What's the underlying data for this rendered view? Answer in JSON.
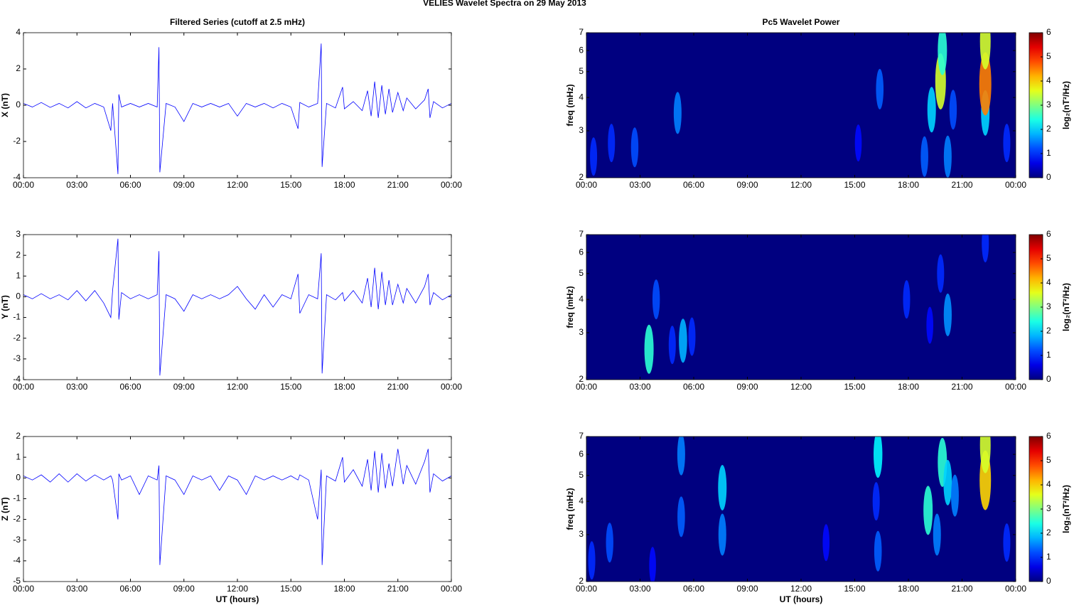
{
  "title": "VELIES Wavelet Spectra on 29 May      2013",
  "chart_data": [
    {
      "type": "line",
      "title": "Filtered Series (cutoff at 2.5 mHz)",
      "ylabel": "X (nT)",
      "x": [
        0,
        0.5,
        1,
        1.5,
        2,
        2.5,
        3,
        3.5,
        4,
        4.5,
        4.9,
        5,
        5.3,
        5.35,
        5.5,
        6,
        6.5,
        7,
        7.5,
        7.6,
        7.65,
        8,
        8.5,
        9,
        9.5,
        10,
        10.5,
        11,
        11.5,
        12,
        12.5,
        13,
        13.5,
        14,
        14.5,
        15,
        15.4,
        15.5,
        16,
        16.5,
        16.7,
        16.75,
        17,
        17.5,
        17.9,
        18,
        18.5,
        19,
        19.3,
        19.5,
        19.7,
        19.9,
        20.1,
        20.3,
        20.5,
        20.7,
        21,
        21.3,
        21.5,
        22,
        22.5,
        22.7,
        22.8,
        23,
        23.5,
        24
      ],
      "series": [
        {
          "color": "#0000ff",
          "values": [
            0.1,
            -0.1,
            0.15,
            -0.12,
            0.1,
            -0.15,
            0.2,
            -0.15,
            0.1,
            -0.1,
            -1.4,
            0.1,
            -3.8,
            0.6,
            -0.1,
            0.1,
            -0.1,
            0.1,
            -0.1,
            3.2,
            -3.7,
            0.1,
            -0.1,
            -0.9,
            0.1,
            -0.1,
            0.1,
            -0.1,
            0.1,
            -0.6,
            0.1,
            -0.1,
            0.1,
            -0.15,
            0.1,
            -0.1,
            -1.3,
            0.15,
            -0.1,
            0.1,
            3.4,
            -3.4,
            0.1,
            -0.15,
            1.0,
            -0.2,
            0.2,
            -0.3,
            0.8,
            -0.6,
            1.3,
            -0.7,
            1.1,
            -0.5,
            0.9,
            -0.4,
            0.7,
            -0.3,
            0.4,
            -0.2,
            0.3,
            0.9,
            -0.7,
            0.2,
            -0.15,
            0.1
          ]
        }
      ],
      "xlim": [
        0,
        24
      ],
      "ylim": [
        -4,
        4
      ],
      "yticks": [
        -4,
        -2,
        0,
        2,
        4
      ],
      "xticks": [
        {
          "value": 0,
          "label": "00:00"
        },
        {
          "value": 3,
          "label": "03:00"
        },
        {
          "value": 6,
          "label": "06:00"
        },
        {
          "value": 9,
          "label": "09:00"
        },
        {
          "value": 12,
          "label": "12:00"
        },
        {
          "value": 15,
          "label": "15:00"
        },
        {
          "value": 18,
          "label": "18:00"
        },
        {
          "value": 21,
          "label": "21:00"
        },
        {
          "value": 24,
          "label": "00:00"
        }
      ]
    },
    {
      "type": "line",
      "ylabel": "Y (nT)",
      "x": [
        0,
        0.5,
        1,
        1.5,
        2,
        2.5,
        3,
        3.5,
        4,
        4.5,
        4.9,
        5,
        5.3,
        5.35,
        5.5,
        6,
        6.5,
        7,
        7.5,
        7.6,
        7.65,
        8,
        8.5,
        9,
        9.5,
        10,
        10.5,
        11,
        11.5,
        12,
        12.5,
        13,
        13.5,
        14,
        14.5,
        15,
        15.4,
        15.5,
        16,
        16.5,
        16.7,
        16.75,
        17,
        17.5,
        17.9,
        18,
        18.5,
        19,
        19.3,
        19.5,
        19.7,
        19.9,
        20.1,
        20.3,
        20.5,
        20.7,
        21,
        21.3,
        21.5,
        22,
        22.5,
        22.7,
        22.8,
        23,
        23.5,
        24
      ],
      "series": [
        {
          "color": "#0000ff",
          "values": [
            0.1,
            -0.1,
            0.15,
            -0.1,
            0.1,
            -0.15,
            0.3,
            -0.2,
            0.3,
            -0.3,
            -1.0,
            0.3,
            2.8,
            -1.1,
            0.2,
            -0.1,
            0.1,
            -0.1,
            0.1,
            2.2,
            -3.8,
            0.1,
            -0.1,
            -0.7,
            0.1,
            -0.1,
            0.1,
            -0.1,
            0.1,
            0.5,
            -0.1,
            -0.6,
            0.1,
            -0.5,
            0.1,
            -0.1,
            1.1,
            -0.8,
            0.1,
            -0.1,
            2.1,
            -3.7,
            0.1,
            -0.15,
            0.2,
            -0.2,
            0.3,
            -0.3,
            0.9,
            -0.5,
            1.4,
            -0.6,
            1.2,
            -0.4,
            0.8,
            -0.4,
            0.6,
            -0.3,
            0.4,
            -0.3,
            0.5,
            1.1,
            -0.4,
            0.2,
            -0.15,
            0.1
          ]
        }
      ],
      "xlim": [
        0,
        24
      ],
      "ylim": [
        -4,
        3
      ],
      "yticks": [
        -4,
        -3,
        -2,
        -1,
        0,
        1,
        2,
        3
      ],
      "xticks": [
        {
          "value": 0,
          "label": "00:00"
        },
        {
          "value": 3,
          "label": "03:00"
        },
        {
          "value": 6,
          "label": "06:00"
        },
        {
          "value": 9,
          "label": "09:00"
        },
        {
          "value": 12,
          "label": "12:00"
        },
        {
          "value": 15,
          "label": "15:00"
        },
        {
          "value": 18,
          "label": "18:00"
        },
        {
          "value": 21,
          "label": "21:00"
        },
        {
          "value": 24,
          "label": "00:00"
        }
      ]
    },
    {
      "type": "line",
      "ylabel": "Z (nT)",
      "xlabel": "UT (hours)",
      "x": [
        0,
        0.5,
        1,
        1.5,
        2,
        2.5,
        3,
        3.5,
        4,
        4.5,
        4.9,
        5,
        5.3,
        5.35,
        5.5,
        6,
        6.5,
        7,
        7.5,
        7.6,
        7.65,
        8,
        8.5,
        9,
        9.5,
        10,
        10.5,
        11,
        11.5,
        12,
        12.5,
        13,
        13.5,
        14,
        14.5,
        15,
        15.4,
        15.5,
        16,
        16.5,
        16.7,
        16.75,
        17,
        17.5,
        17.9,
        18,
        18.5,
        19,
        19.3,
        19.5,
        19.7,
        19.9,
        20.1,
        20.3,
        20.5,
        20.7,
        21,
        21.3,
        21.5,
        22,
        22.5,
        22.7,
        22.8,
        23,
        23.5,
        24
      ],
      "series": [
        {
          "color": "#0000ff",
          "values": [
            0.1,
            -0.1,
            0.15,
            -0.2,
            0.2,
            -0.2,
            0.2,
            -0.15,
            0.15,
            -0.1,
            0.1,
            -0.1,
            -2.0,
            0.2,
            -0.1,
            0.1,
            -0.8,
            0.1,
            -0.1,
            0.6,
            -4.2,
            0.1,
            -0.1,
            -0.8,
            0.1,
            -0.1,
            0.1,
            -0.6,
            0.1,
            -0.1,
            -0.8,
            0.1,
            -0.1,
            0.1,
            -0.1,
            0.1,
            -0.1,
            0.15,
            -0.1,
            -2.0,
            0.4,
            -4.2,
            0.1,
            -0.15,
            1.0,
            -0.2,
            0.4,
            -0.4,
            0.9,
            -0.6,
            1.3,
            -0.7,
            1.2,
            -0.5,
            0.7,
            -0.4,
            1.4,
            -0.3,
            0.6,
            -0.3,
            0.8,
            1.4,
            -0.7,
            0.2,
            -0.15,
            0.1
          ]
        }
      ],
      "xlim": [
        0,
        24
      ],
      "ylim": [
        -5,
        2
      ],
      "yticks": [
        -5,
        -4,
        -3,
        -2,
        -1,
        0,
        1,
        2
      ],
      "xticks": [
        {
          "value": 0,
          "label": "00:00"
        },
        {
          "value": 3,
          "label": "03:00"
        },
        {
          "value": 6,
          "label": "06:00"
        },
        {
          "value": 9,
          "label": "09:00"
        },
        {
          "value": 12,
          "label": "12:00"
        },
        {
          "value": 15,
          "label": "15:00"
        },
        {
          "value": 18,
          "label": "18:00"
        },
        {
          "value": 21,
          "label": "21:00"
        },
        {
          "value": 24,
          "label": "00:00"
        }
      ]
    },
    {
      "type": "heatmap",
      "title": "Pc5 Wavelet Power",
      "ylabel": "freq (mHz)",
      "colorbar_label": "log₂(nT²/Hz)",
      "log_y": true,
      "x": [
        0.4,
        1.4,
        2.7,
        5.1,
        15.2,
        16.4,
        18.9,
        19.3,
        19.8,
        19.9,
        20.2,
        20.5,
        22.3,
        22.3,
        22.3,
        23.5
      ],
      "y": [
        2.4,
        2.7,
        2.6,
        3.5,
        2.7,
        4.3,
        2.4,
        3.6,
        4.6,
        6,
        2.4,
        3.6,
        3.5,
        4.5,
        6.5,
        2.7
      ],
      "values": [
        1,
        1,
        1.2,
        1.5,
        0.8,
        1.3,
        1.3,
        2,
        3.5,
        2.5,
        1.5,
        1.2,
        2,
        4.5,
        3.5,
        1
      ],
      "xlim": [
        0,
        24
      ],
      "ylim": [
        2,
        7
      ],
      "yticks": [
        2,
        3,
        4,
        5,
        6,
        7
      ],
      "clim": [
        0,
        6
      ],
      "cticks": [
        0,
        1,
        2,
        3,
        4,
        5,
        6
      ],
      "xticks": [
        {
          "value": 0,
          "label": "00:00"
        },
        {
          "value": 3,
          "label": "03:00"
        },
        {
          "value": 6,
          "label": "06:00"
        },
        {
          "value": 9,
          "label": "09:00"
        },
        {
          "value": 12,
          "label": "12:00"
        },
        {
          "value": 15,
          "label": "15:00"
        },
        {
          "value": 18,
          "label": "18:00"
        },
        {
          "value": 21,
          "label": "21:00"
        },
        {
          "value": 24,
          "label": "00:00"
        }
      ]
    },
    {
      "type": "heatmap",
      "ylabel": "freq (mHz)",
      "colorbar_label": "log₂(nT²/Hz)",
      "log_y": true,
      "x": [
        3.5,
        3.9,
        4.8,
        5.4,
        5.9,
        17.9,
        19.2,
        19.8,
        20.2,
        22.3
      ],
      "y": [
        2.6,
        4,
        2.7,
        2.8,
        2.9,
        4,
        3.2,
        5,
        3.5,
        6.5
      ],
      "values": [
        2.5,
        1.2,
        1,
        1.8,
        1,
        1,
        0.8,
        1,
        1.6,
        1
      ],
      "xlim": [
        0,
        24
      ],
      "ylim": [
        2,
        7
      ],
      "yticks": [
        2,
        3,
        4,
        5,
        6,
        7
      ],
      "clim": [
        0,
        6
      ],
      "cticks": [
        0,
        1,
        2,
        3,
        4,
        5,
        6
      ],
      "xticks": [
        {
          "value": 0,
          "label": "00:00"
        },
        {
          "value": 3,
          "label": "03:00"
        },
        {
          "value": 6,
          "label": "06:00"
        },
        {
          "value": 9,
          "label": "09:00"
        },
        {
          "value": 12,
          "label": "12:00"
        },
        {
          "value": 15,
          "label": "15:00"
        },
        {
          "value": 18,
          "label": "18:00"
        },
        {
          "value": 21,
          "label": "21:00"
        },
        {
          "value": 24,
          "label": "00:00"
        }
      ]
    },
    {
      "type": "heatmap",
      "ylabel": "freq (mHz)",
      "xlabel": "UT (hours)",
      "colorbar_label": "log₂(nT²/Hz)",
      "log_y": true,
      "x": [
        0.3,
        1.3,
        3.7,
        5.3,
        5.3,
        7.6,
        7.6,
        13.4,
        16.2,
        16.3,
        16.3,
        19.1,
        19.6,
        19.9,
        20.2,
        20.6,
        22.3,
        22.3,
        23.5
      ],
      "y": [
        2.4,
        2.8,
        2.3,
        6,
        3.5,
        4.5,
        3,
        2.8,
        4,
        6,
        2.6,
        3.7,
        3,
        5.6,
        4.7,
        4.2,
        4.8,
        6.5,
        2.8
      ],
      "values": [
        1,
        1.2,
        0.8,
        1.5,
        1.3,
        2,
        1.5,
        0.8,
        1,
        2.2,
        1.3,
        2.5,
        1.5,
        2.5,
        2,
        1.5,
        4,
        3.5,
        1
      ],
      "xlim": [
        0,
        24
      ],
      "ylim": [
        2,
        7
      ],
      "yticks": [
        2,
        3,
        4,
        5,
        6,
        7
      ],
      "clim": [
        0,
        6
      ],
      "cticks": [
        0,
        1,
        2,
        3,
        4,
        5,
        6
      ],
      "xticks": [
        {
          "value": 0,
          "label": "00:00"
        },
        {
          "value": 3,
          "label": "03:00"
        },
        {
          "value": 6,
          "label": "06:00"
        },
        {
          "value": 9,
          "label": "09:00"
        },
        {
          "value": 12,
          "label": "12:00"
        },
        {
          "value": 15,
          "label": "15:00"
        },
        {
          "value": 18,
          "label": "18:00"
        },
        {
          "value": 21,
          "label": "21:00"
        },
        {
          "value": 24,
          "label": "00:00"
        }
      ]
    }
  ]
}
